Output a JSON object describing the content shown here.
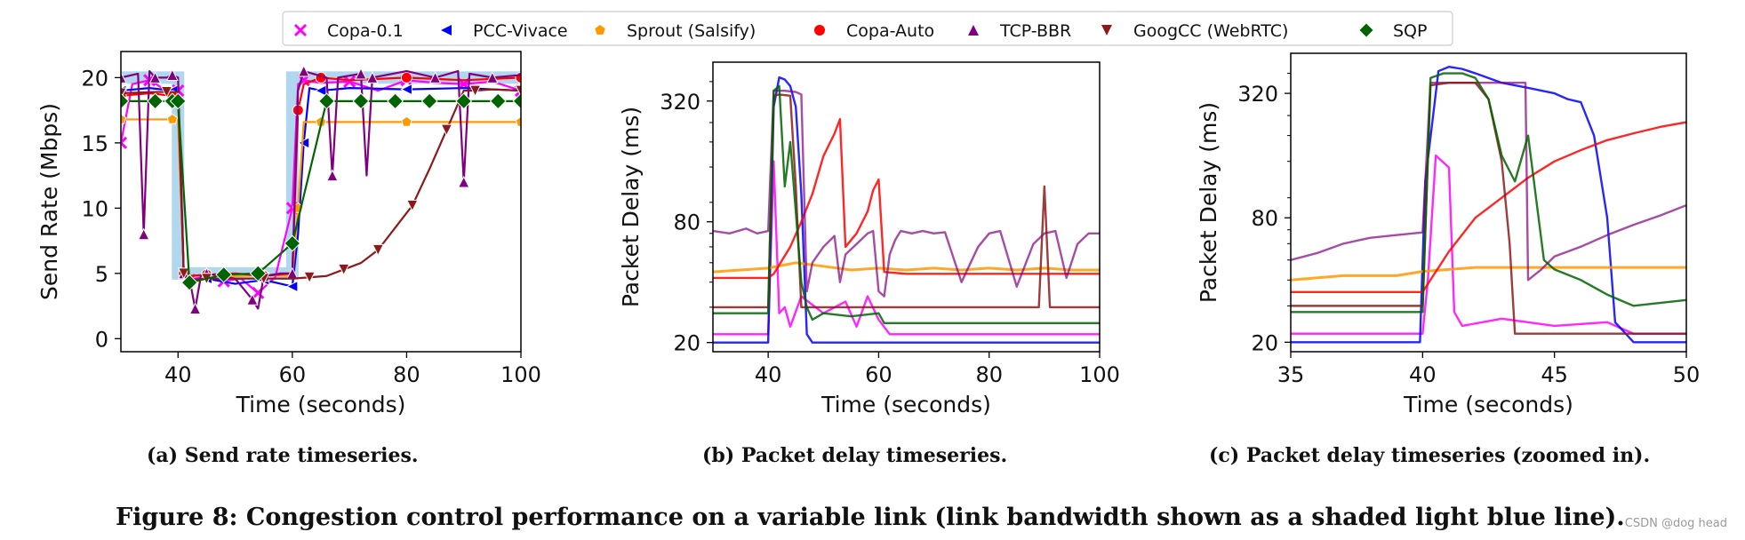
{
  "legend": [
    {
      "name": "Copa-0.1",
      "color": "#ff00ff",
      "marker": "x"
    },
    {
      "name": "PCC-Vivace",
      "color": "#0000ff",
      "marker": "triangle-left"
    },
    {
      "name": "Sprout (Salsify)",
      "color": "#ff9900",
      "marker": "pentagon"
    },
    {
      "name": "Copa-Auto",
      "color": "#ff0000",
      "marker": "circle"
    },
    {
      "name": "TCP-BBR",
      "color": "#800080",
      "marker": "triangle-up"
    },
    {
      "name": "GoogCC (WebRTC)",
      "color": "#8b1a1a",
      "marker": "triangle-down"
    },
    {
      "name": "SQP",
      "color": "#006400",
      "marker": "diamond"
    }
  ],
  "captions": {
    "a": "(a) Send rate timeseries.",
    "b": "(b) Packet delay timeseries.",
    "c": "(c) Packet delay timeseries (zoomed in).",
    "main": "Figure 8: Congestion control performance on a variable link (link bandwidth shown as a shaded light blue line)."
  },
  "watermark": "CSDN @dog head",
  "chart_data": [
    {
      "type": "line",
      "panel": "a",
      "xlabel": "Time (seconds)",
      "ylabel": "Send Rate (Mbps)",
      "xlim": [
        30,
        100
      ],
      "ylim": [
        -1,
        22
      ],
      "xticks": [
        40,
        60,
        80,
        100
      ],
      "yticks": [
        0,
        5,
        10,
        15,
        20
      ],
      "link_bandwidth": {
        "x": [
          30,
          40,
          40,
          60,
          60,
          100
        ],
        "y": [
          20,
          20,
          5,
          5,
          20,
          20
        ]
      },
      "series": [
        {
          "name": "Copa-0.1",
          "x": [
            30,
            32,
            35,
            38,
            40,
            41,
            42,
            45,
            48,
            51,
            54,
            57,
            60,
            61,
            62,
            65,
            70,
            75,
            80,
            85,
            90,
            95,
            100
          ],
          "y": [
            15,
            19.5,
            19.8,
            19,
            19,
            5,
            4.5,
            4.8,
            4.4,
            4.6,
            3.5,
            4.7,
            10,
            19.5,
            19.8,
            19.6,
            19.7,
            19,
            19.8,
            19.6,
            19.5,
            19.7,
            19
          ]
        },
        {
          "name": "PCC-Vivace",
          "x": [
            30,
            35,
            39,
            40,
            41,
            42,
            45,
            50,
            55,
            58,
            60,
            61,
            62,
            63,
            65,
            70,
            80,
            90,
            100
          ],
          "y": [
            19,
            19.2,
            19,
            19,
            5,
            4.4,
            4.6,
            4.2,
            4.5,
            4.2,
            4,
            8,
            15,
            19.2,
            19,
            19.2,
            19.1,
            19.2,
            19
          ]
        },
        {
          "name": "Sprout (Salsify)",
          "x": [
            30,
            35,
            39,
            40,
            41,
            42,
            45,
            50,
            55,
            60,
            61,
            62,
            65,
            70,
            80,
            90,
            100
          ],
          "y": [
            16.8,
            16.8,
            16.8,
            16.8,
            5,
            4.8,
            4.9,
            4.8,
            4.9,
            4.8,
            10,
            16.6,
            16.6,
            16.6,
            16.6,
            16.6,
            16.6
          ]
        },
        {
          "name": "Copa-Auto",
          "x": [
            30,
            35,
            39,
            40,
            41,
            42,
            45,
            50,
            55,
            60,
            61,
            62,
            65,
            70,
            80,
            90,
            100
          ],
          "y": [
            18.6,
            18.8,
            18.6,
            18.6,
            5,
            4.8,
            4.9,
            5,
            4.8,
            5,
            17.5,
            19.5,
            20,
            19.8,
            20,
            19.8,
            20
          ]
        },
        {
          "name": "TCP-BBR",
          "x": [
            30,
            33,
            34,
            35,
            36,
            38,
            39,
            40,
            41,
            42,
            43,
            44,
            45,
            50,
            53,
            54,
            55,
            58,
            60,
            61,
            62,
            66,
            67,
            68,
            72,
            73,
            74,
            80,
            85,
            89,
            90,
            91,
            95,
            100
          ],
          "y": [
            20,
            20.3,
            8,
            20.5,
            20,
            20,
            20.2,
            20,
            5,
            4.6,
            2.3,
            4.8,
            5,
            4.6,
            3,
            2.3,
            4.8,
            5,
            5,
            19,
            20.5,
            20,
            12.5,
            20,
            20.3,
            12.5,
            20,
            20.5,
            20,
            20.5,
            12,
            20.3,
            20,
            20.2
          ]
        },
        {
          "name": "GoogCC (WebRTC)",
          "x": [
            30,
            36,
            38,
            40,
            41,
            42,
            45,
            50,
            55,
            60,
            63,
            66,
            69,
            72,
            75,
            78,
            81,
            84,
            87,
            90,
            92,
            95,
            100
          ],
          "y": [
            18.8,
            18.9,
            18.9,
            18.9,
            5,
            4.5,
            4.6,
            4.6,
            4.6,
            4.6,
            4.7,
            4.8,
            5.3,
            5.8,
            6.8,
            8.5,
            10.2,
            13,
            16,
            19,
            19,
            19.1,
            19
          ]
        },
        {
          "name": "SQP",
          "x": [
            30,
            36,
            39,
            40,
            42,
            48,
            54,
            60,
            66,
            72,
            78,
            84,
            90,
            96,
            100
          ],
          "y": [
            18.2,
            18.2,
            18.2,
            18.2,
            4.3,
            4.9,
            5,
            7.3,
            18.2,
            18.2,
            18.2,
            18.2,
            18.2,
            18.2,
            18.2
          ]
        }
      ]
    },
    {
      "type": "line",
      "panel": "b",
      "xlabel": "Time (seconds)",
      "ylabel": "Packet Delay (ms)",
      "xlim": [
        30,
        100
      ],
      "ylim": [
        18,
        500
      ],
      "yscale": "log",
      "xticks": [
        40,
        60,
        80,
        100
      ],
      "yticks": [
        20,
        80,
        320
      ],
      "series": [
        {
          "name": "Copa-0.1",
          "x": [
            30,
            40,
            41,
            42,
            43,
            44,
            46,
            50,
            54,
            56,
            58,
            60,
            62,
            70,
            80,
            90,
            100
          ],
          "y": [
            22,
            22,
            160,
            28,
            30,
            24,
            34,
            28,
            32,
            24,
            34,
            26,
            22,
            22,
            22,
            22,
            22
          ]
        },
        {
          "name": "PCC-Vivace",
          "x": [
            30,
            39,
            40,
            41,
            42,
            43,
            44,
            45,
            46,
            47,
            48,
            55,
            60,
            65,
            70,
            80,
            90,
            100
          ],
          "y": [
            20,
            20,
            20,
            300,
            420,
            410,
            380,
            300,
            110,
            22,
            20,
            20,
            20,
            20,
            20,
            20,
            20,
            20
          ]
        },
        {
          "name": "Sprout (Salsify)",
          "x": [
            30,
            35,
            40,
            45,
            50,
            55,
            60,
            65,
            70,
            75,
            80,
            85,
            90,
            95,
            100
          ],
          "y": [
            45,
            46,
            47,
            50,
            48,
            46,
            47,
            46,
            47,
            46,
            47,
            46,
            47,
            46,
            46
          ]
        },
        {
          "name": "Copa-Auto",
          "x": [
            30,
            40,
            41,
            44,
            46,
            48,
            50,
            52,
            53,
            54,
            56,
            58,
            59,
            60,
            61,
            65,
            70,
            80,
            90,
            100
          ],
          "y": [
            42,
            42,
            44,
            60,
            80,
            110,
            170,
            220,
            260,
            60,
            70,
            90,
            115,
            130,
            45,
            44,
            44,
            44,
            44,
            44
          ]
        },
        {
          "name": "TCP-BBR",
          "x": [
            30,
            33,
            36,
            38,
            40,
            41,
            43,
            45,
            46,
            47,
            48,
            50,
            52,
            53,
            54,
            56,
            58,
            59,
            60,
            61,
            62,
            63,
            64,
            66,
            68,
            70,
            72,
            75,
            78,
            80,
            82,
            85,
            88,
            90,
            92,
            94,
            96,
            98,
            100
          ],
          "y": [
            72,
            70,
            74,
            70,
            72,
            360,
            360,
            355,
            345,
            36,
            50,
            60,
            68,
            40,
            55,
            62,
            70,
            72,
            36,
            34,
            55,
            65,
            72,
            70,
            72,
            70,
            71,
            40,
            60,
            70,
            72,
            38,
            62,
            70,
            72,
            42,
            62,
            70,
            70
          ]
        },
        {
          "name": "GoogCC (WebRTC)",
          "x": [
            30,
            40,
            41,
            42,
            44,
            45,
            46,
            48,
            50,
            60,
            70,
            80,
            89,
            90,
            91,
            92,
            100
          ],
          "y": [
            30,
            30,
            340,
            345,
            340,
            120,
            30,
            30,
            30,
            30,
            30,
            30,
            30,
            120,
            30,
            30,
            30
          ]
        },
        {
          "name": "SQP",
          "x": [
            30,
            40,
            41,
            42,
            43,
            44,
            45,
            46,
            47,
            48,
            50,
            55,
            60,
            61,
            70,
            80,
            90,
            100
          ],
          "y": [
            28,
            28,
            360,
            380,
            120,
            200,
            90,
            40,
            30,
            26,
            28,
            27,
            28,
            25,
            25,
            25,
            25,
            25
          ]
        }
      ]
    },
    {
      "type": "line",
      "panel": "c",
      "xlabel": "Time (seconds)",
      "ylabel": "Packet Delay (ms)",
      "xlim": [
        35,
        50
      ],
      "ylim": [
        18,
        500
      ],
      "yscale": "log",
      "xticks": [
        35,
        40,
        45,
        50
      ],
      "yticks": [
        20,
        80,
        320
      ],
      "series": [
        {
          "name": "Copa-0.1",
          "x": [
            35,
            40,
            40.2,
            40.5,
            41,
            41.2,
            41.5,
            43,
            45,
            47,
            48,
            50
          ],
          "y": [
            22,
            22,
            40,
            160,
            140,
            28,
            24,
            26,
            24,
            25,
            22,
            22
          ]
        },
        {
          "name": "PCC-Vivace",
          "x": [
            35,
            39.9,
            40.1,
            40.6,
            41,
            41.5,
            42,
            43,
            44,
            45,
            45.5,
            46,
            46.5,
            47,
            47.3,
            48,
            50
          ],
          "y": [
            20,
            20,
            120,
            410,
            430,
            420,
            400,
            360,
            340,
            320,
            300,
            290,
            200,
            80,
            25,
            20,
            20
          ]
        },
        {
          "name": "Sprout (Salsify)",
          "x": [
            35,
            37,
            39,
            40,
            41,
            42,
            43,
            44,
            45,
            46,
            47,
            48,
            49,
            50
          ],
          "y": [
            40,
            42,
            42,
            44,
            45,
            46,
            46,
            46,
            46,
            46,
            46,
            46,
            46,
            46
          ]
        },
        {
          "name": "Copa-Auto",
          "x": [
            35,
            40,
            41,
            42,
            43,
            44,
            45,
            46,
            47,
            48,
            49,
            50
          ],
          "y": [
            35,
            35,
            55,
            80,
            100,
            125,
            150,
            170,
            190,
            205,
            220,
            232
          ]
        },
        {
          "name": "TCP-BBR",
          "x": [
            35,
            36,
            37,
            38,
            39,
            40,
            40.3,
            41,
            42,
            43,
            43.9,
            44,
            44.5,
            45,
            46,
            47,
            48,
            49,
            50
          ],
          "y": [
            50,
            54,
            60,
            64,
            66,
            68,
            360,
            360,
            360,
            360,
            360,
            40,
            45,
            52,
            58,
            66,
            74,
            82,
            92
          ]
        },
        {
          "name": "GoogCC (WebRTC)",
          "x": [
            35,
            40,
            40.3,
            41,
            42,
            42.5,
            43,
            43.3,
            43.5,
            44,
            45,
            50
          ],
          "y": [
            30,
            30,
            350,
            360,
            360,
            300,
            150,
            60,
            22,
            22,
            22,
            22
          ]
        },
        {
          "name": "SQP",
          "x": [
            35,
            40,
            40.3,
            40.8,
            41.5,
            42,
            42.5,
            43,
            43.5,
            44,
            44.3,
            44.6,
            45,
            46,
            47,
            48,
            50
          ],
          "y": [
            28,
            28,
            380,
            400,
            400,
            380,
            300,
            160,
            120,
            200,
            100,
            50,
            45,
            40,
            34,
            30,
            32
          ]
        }
      ]
    }
  ]
}
